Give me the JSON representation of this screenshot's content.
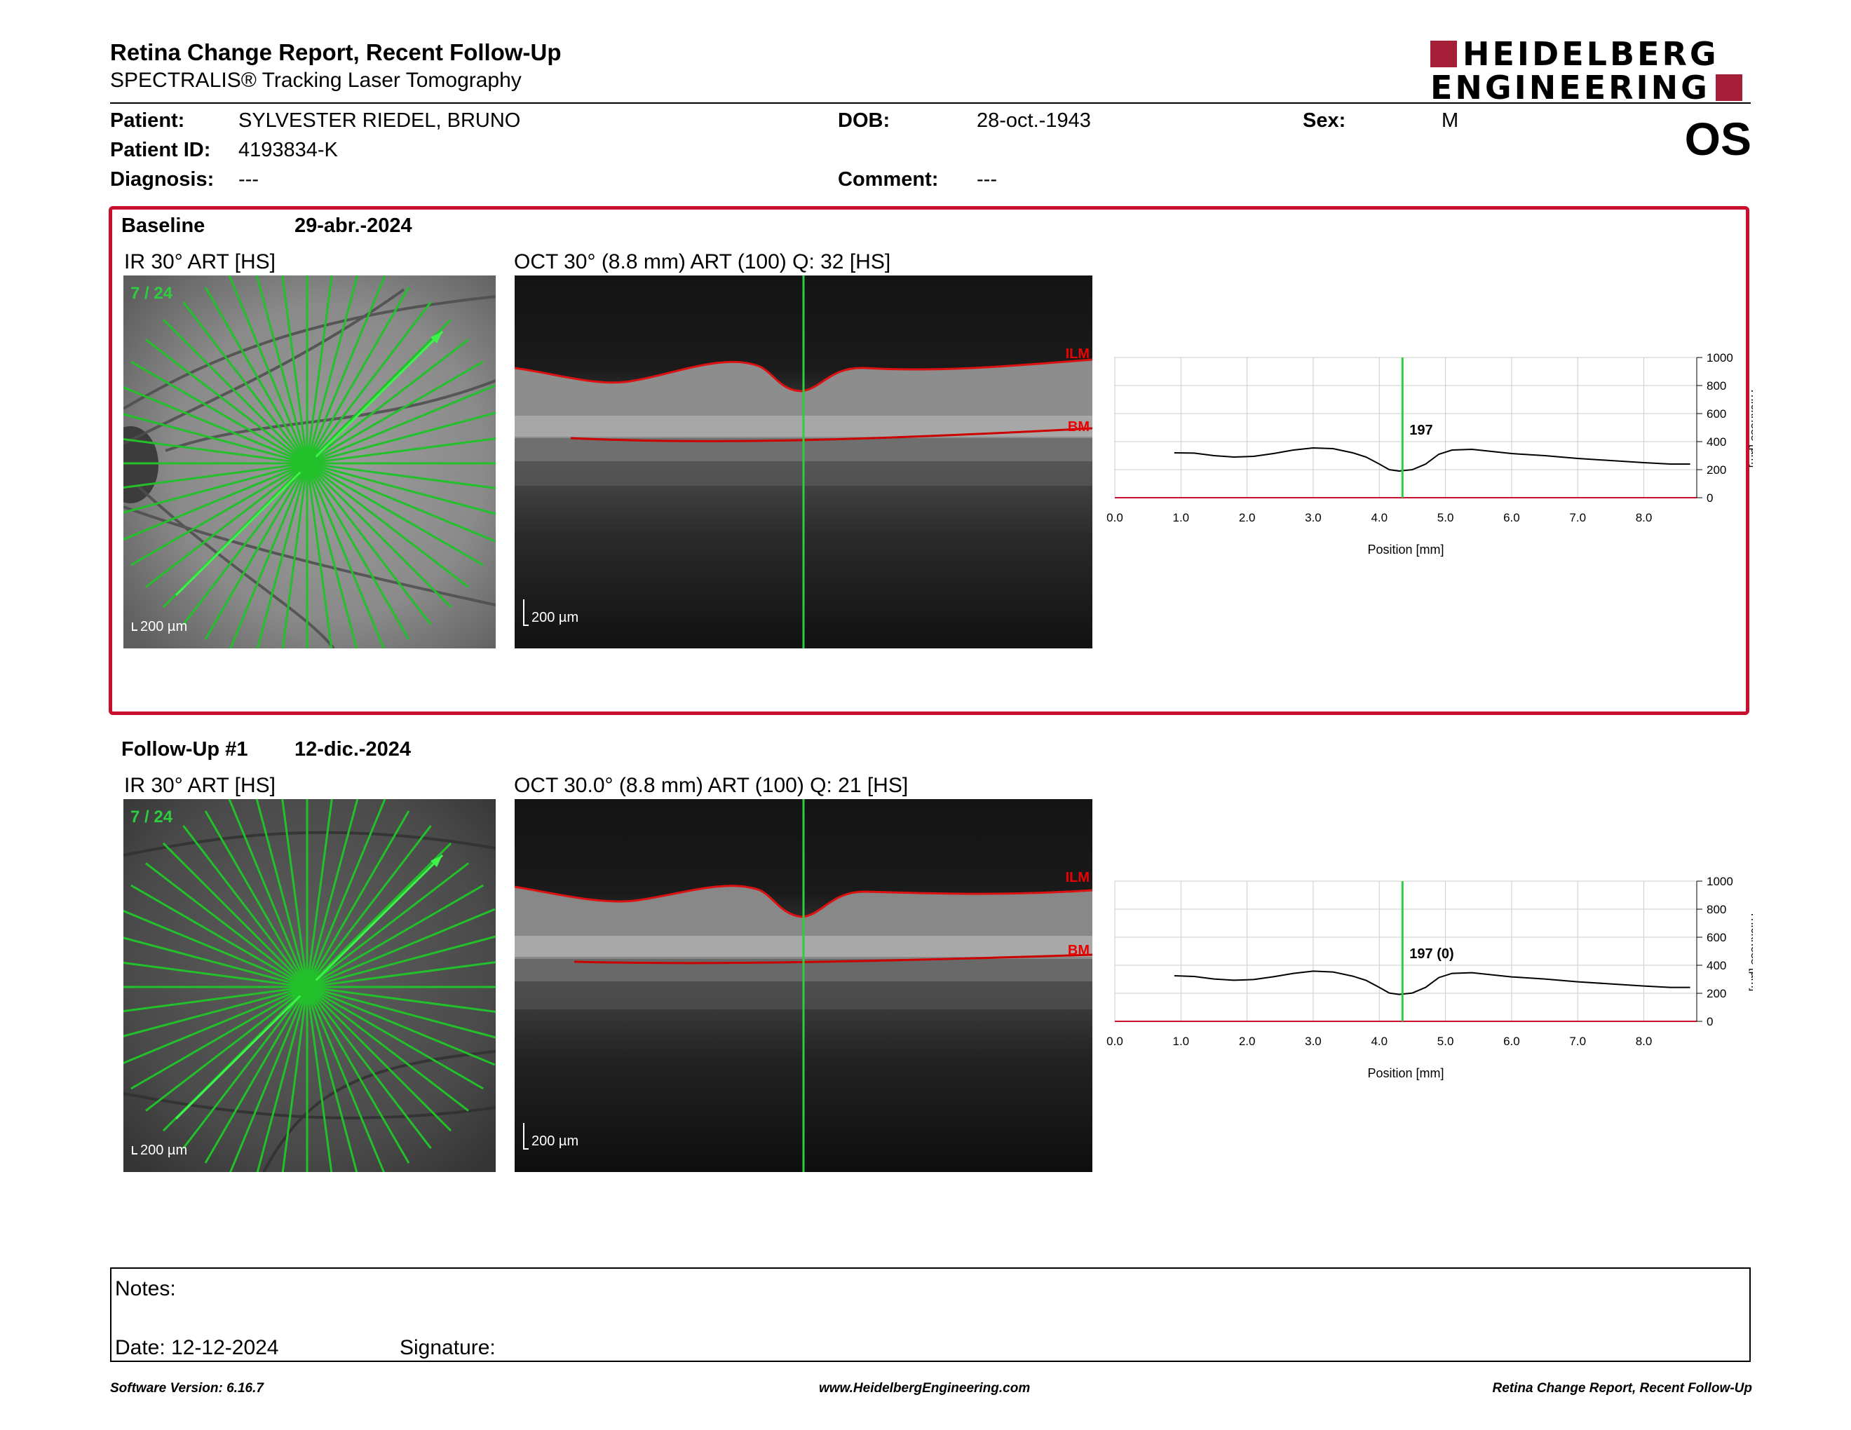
{
  "header": {
    "title": "Retina Change Report, Recent Follow-Up",
    "subtitle": "SPECTRALIS® Tracking Laser Tomography",
    "logo_line1": "HEIDELBERG",
    "logo_line2": "ENGINEERING",
    "eye": "OS"
  },
  "patient": {
    "patient_label": "Patient:",
    "patient_value": "SYLVESTER RIEDEL, BRUNO",
    "id_label": "Patient ID:",
    "id_value": "4193834-K",
    "diagnosis_label": "Diagnosis:",
    "diagnosis_value": "---",
    "dob_label": "DOB:",
    "dob_value": "28-oct.-1943",
    "comment_label": "Comment:",
    "comment_value": "---",
    "sex_label": "Sex:",
    "sex_value": "M"
  },
  "baseline": {
    "label": "Baseline",
    "date": "29-abr.-2024",
    "ir_caption": "IR 30° ART [HS]",
    "oct_caption": "OCT 30° (8.8 mm) ART (100) Q: 32 [HS]",
    "scan_index": "7 / 24",
    "ir_scale": "200 µm",
    "oct_scale": "200 µm",
    "ilm_label": "ILM",
    "bm_label": "BM",
    "marker_value": "197"
  },
  "followup": {
    "label": "Follow-Up #1",
    "date": "12-dic.-2024",
    "ir_caption": "IR 30° ART [HS]",
    "oct_caption": "OCT 30.0° (8.8 mm) ART (100) Q: 21 [HS]",
    "scan_index": "7 / 24",
    "ir_scale": "200 µm",
    "oct_scale": "200 µm",
    "ilm_label": "ILM",
    "bm_label": "BM",
    "marker_value": "197 (0)"
  },
  "chart_data": [
    {
      "type": "line",
      "xlabel": "Position [mm]",
      "ylabel": "Thickness [µm]",
      "xlim": [
        0,
        8.8
      ],
      "ylim": [
        0,
        1000
      ],
      "x_ticks": [
        "0.0",
        "1.0",
        "2.0",
        "3.0",
        "4.0",
        "5.0",
        "6.0",
        "7.0",
        "8.0"
      ],
      "y_ticks": [
        "0",
        "200",
        "400",
        "600",
        "800",
        "1000"
      ],
      "marker_x": 4.35,
      "marker_label": "197",
      "x": [
        0.9,
        1.2,
        1.5,
        1.8,
        2.1,
        2.4,
        2.7,
        3.0,
        3.3,
        3.6,
        3.8,
        4.0,
        4.15,
        4.3,
        4.5,
        4.7,
        4.9,
        5.1,
        5.4,
        5.7,
        6.0,
        6.5,
        7.0,
        7.5,
        8.0,
        8.4,
        8.7
      ],
      "y": [
        320,
        318,
        300,
        290,
        295,
        315,
        340,
        355,
        350,
        320,
        290,
        240,
        200,
        190,
        200,
        240,
        310,
        340,
        345,
        330,
        315,
        300,
        280,
        265,
        250,
        240,
        240
      ]
    },
    {
      "type": "line",
      "xlabel": "Position [mm]",
      "ylabel": "Thickness [µm]",
      "xlim": [
        0,
        8.8
      ],
      "ylim": [
        0,
        1000
      ],
      "x_ticks": [
        "0.0",
        "1.0",
        "2.0",
        "3.0",
        "4.0",
        "5.0",
        "6.0",
        "7.0",
        "8.0"
      ],
      "y_ticks": [
        "0",
        "200",
        "400",
        "600",
        "800",
        "1000"
      ],
      "marker_x": 4.35,
      "marker_label": "197 (0)",
      "x": [
        0.9,
        1.2,
        1.5,
        1.8,
        2.1,
        2.4,
        2.7,
        3.0,
        3.3,
        3.6,
        3.8,
        4.0,
        4.15,
        4.3,
        4.5,
        4.7,
        4.9,
        5.1,
        5.4,
        5.7,
        6.0,
        6.5,
        7.0,
        7.5,
        8.0,
        8.4,
        8.7
      ],
      "y": [
        325,
        320,
        302,
        293,
        298,
        318,
        342,
        358,
        352,
        322,
        292,
        242,
        202,
        192,
        202,
        242,
        312,
        342,
        347,
        332,
        317,
        302,
        282,
        267,
        252,
        242,
        242
      ]
    }
  ],
  "notes": {
    "notes_label": "Notes:",
    "date_label": "Date: 12-12-2024",
    "signature_label": "Signature:"
  },
  "footer": {
    "software": "Software Version: 6.16.7",
    "website": "www.HeidelbergEngineering.com",
    "report": "Retina Change Report, Recent Follow-Up"
  },
  "colors": {
    "accent_red": "#c8102e",
    "logo_red": "#a31e36",
    "scan_green": "#22c02a",
    "marker_green": "#2ecc40"
  }
}
